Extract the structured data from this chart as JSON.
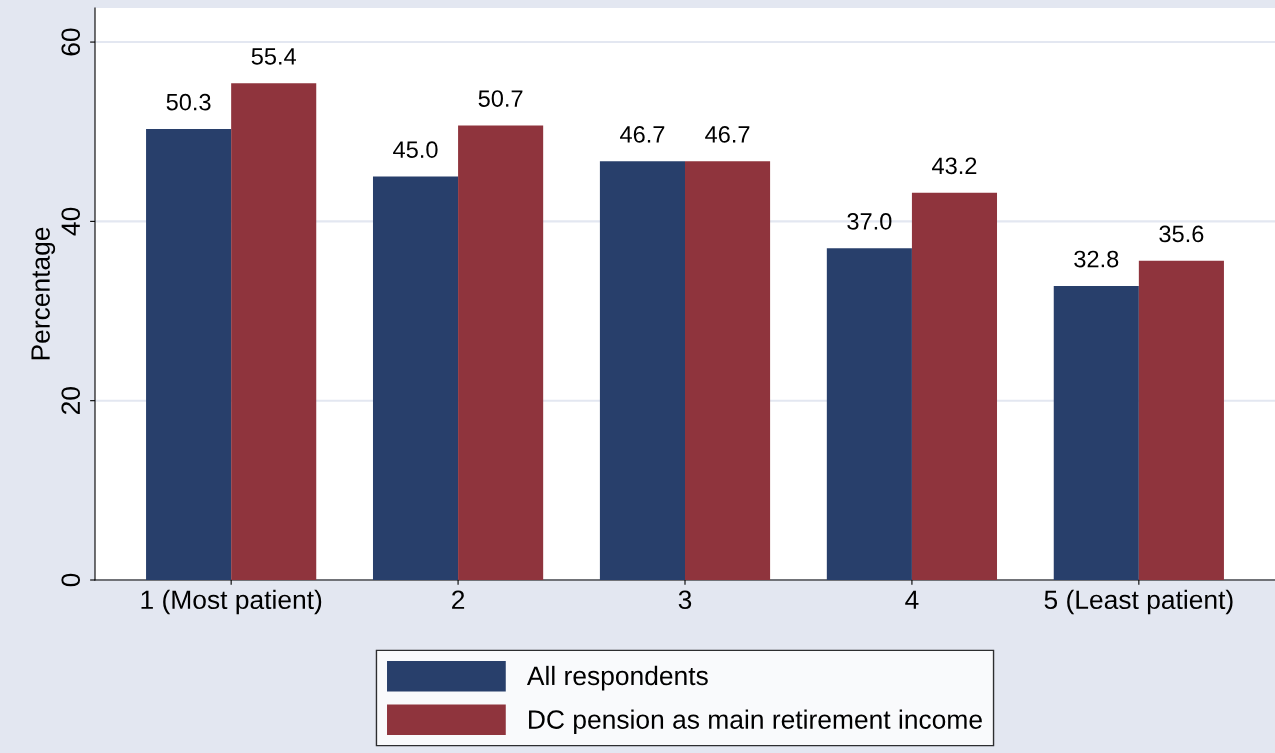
{
  "chart_data": {
    "type": "bar",
    "ylabel": "Percentage",
    "categories": [
      "1 (Most patient)",
      "2",
      "3",
      "4",
      "5 (Least patient)"
    ],
    "series": [
      {
        "name": "All respondents",
        "color": "#283f6b",
        "values": [
          50.3,
          45.0,
          46.7,
          37.0,
          32.8
        ]
      },
      {
        "name": "DC pension as main retirement income",
        "color": "#8f343d",
        "values": [
          55.4,
          50.7,
          46.7,
          43.2,
          35.6
        ]
      }
    ],
    "value_labels": [
      [
        "50.3",
        "45.0",
        "46.7",
        "37.0",
        "32.8"
      ],
      [
        "55.4",
        "50.7",
        "46.7",
        "43.2",
        "35.6"
      ]
    ],
    "ylim": [
      0,
      63.8
    ],
    "yticks": [
      0,
      20,
      40,
      60
    ],
    "grid": "y",
    "legend": "bottom"
  }
}
